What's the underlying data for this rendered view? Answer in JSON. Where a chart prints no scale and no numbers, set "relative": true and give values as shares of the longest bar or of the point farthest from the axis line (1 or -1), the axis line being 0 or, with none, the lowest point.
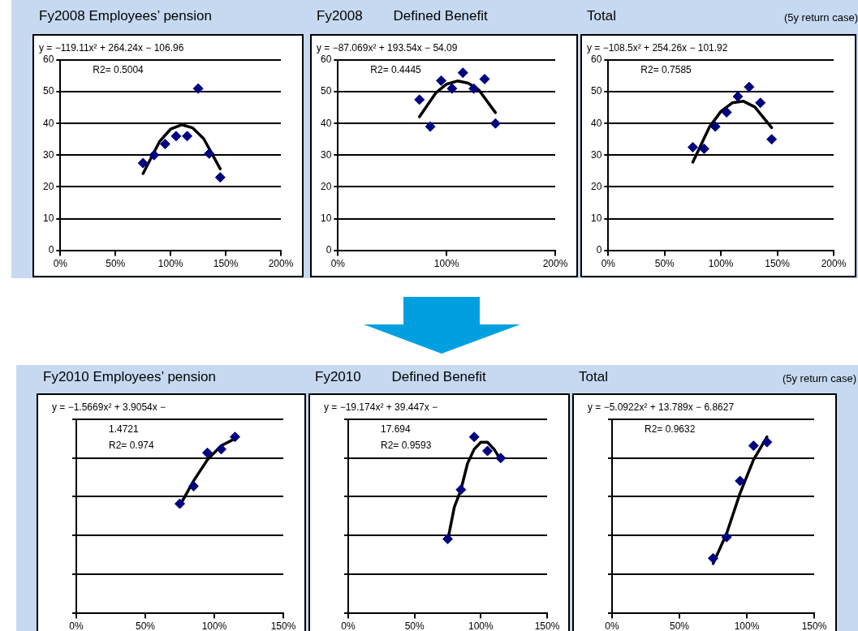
{
  "chart_data": [
    {
      "type": "scatter",
      "title": "Fy2008 Employees’ pension",
      "annotations": [
        "y = −119.11x² + 264.24x − 106.96",
        "R2= 0.5004"
      ],
      "xlim": [
        0,
        2
      ],
      "xticks": [
        {
          "value": 0,
          "label": "0%"
        },
        {
          "value": 0.5,
          "label": "50%"
        },
        {
          "value": 1,
          "label": "100%"
        },
        {
          "value": 1.5,
          "label": "150%"
        },
        {
          "value": 2,
          "label": "200%"
        }
      ],
      "ylim": [
        0,
        60
      ],
      "yticks": [
        0,
        10,
        20,
        30,
        40,
        50,
        60
      ],
      "grid": "y",
      "legend": false,
      "series": [
        {
          "type": "scatter",
          "color": "#000080",
          "marker": "diamond",
          "x": [
            0.75,
            0.85,
            0.95,
            1.05,
            1.15,
            1.25,
            1.35,
            1.45
          ],
          "values": [
            27.5,
            30,
            33.5,
            36,
            36,
            51,
            30.5,
            23
          ]
        },
        {
          "type": "line",
          "color": "#000000",
          "marker": "none",
          "x": [
            0.75,
            0.9,
            1.0,
            1.1,
            1.2,
            1.3,
            1.45
          ],
          "values": [
            24.2,
            34.3,
            38.2,
            39.6,
            38.6,
            35.2,
            25.7
          ]
        }
      ]
    },
    {
      "type": "scatter",
      "title": "Fy2008        Defined Benefit",
      "annotations": [
        "y = −87.069x² + 193.54x − 54.09",
        "R2= 0.4445"
      ],
      "xlim": [
        0,
        2
      ],
      "xticks": [
        {
          "value": 0,
          "label": "0%"
        },
        {
          "value": 1,
          "label": "100%"
        },
        {
          "value": 2,
          "label": "200%"
        }
      ],
      "ylim": [
        0,
        60
      ],
      "yticks": [
        0,
        10,
        20,
        30,
        40,
        50,
        60
      ],
      "grid": "y",
      "legend": false,
      "series": [
        {
          "type": "scatter",
          "color": "#000080",
          "marker": "diamond",
          "x": [
            0.75,
            0.85,
            0.95,
            1.05,
            1.15,
            1.25,
            1.35,
            1.45
          ],
          "values": [
            47.5,
            39,
            53.5,
            51,
            56,
            51,
            54,
            40
          ]
        },
        {
          "type": "line",
          "color": "#000000",
          "marker": "none",
          "x": [
            0.75,
            0.9,
            1.0,
            1.1,
            1.2,
            1.3,
            1.45
          ],
          "values": [
            42.1,
            49.6,
            52.4,
            53.4,
            52.7,
            50.4,
            43.4
          ]
        }
      ]
    },
    {
      "type": "scatter",
      "title": "Total",
      "subtitle": "(5y return case)",
      "annotations": [
        "y = −108.5x² + 254.26x − 101.92",
        "R2= 0.7585"
      ],
      "xlim": [
        0,
        2
      ],
      "xticks": [
        {
          "value": 0,
          "label": "0%"
        },
        {
          "value": 0.5,
          "label": "50%"
        },
        {
          "value": 1,
          "label": "100%"
        },
        {
          "value": 1.5,
          "label": "150%"
        },
        {
          "value": 2,
          "label": "200%"
        }
      ],
      "ylim": [
        0,
        60
      ],
      "yticks": [
        0,
        10,
        20,
        30,
        40,
        50,
        60
      ],
      "grid": "y",
      "legend": false,
      "series": [
        {
          "type": "scatter",
          "color": "#000080",
          "marker": "diamond",
          "x": [
            0.75,
            0.85,
            0.95,
            1.05,
            1.15,
            1.25,
            1.35,
            1.45
          ],
          "values": [
            32.5,
            32,
            39,
            43.5,
            48.5,
            51.5,
            46.5,
            35
          ]
        },
        {
          "type": "line",
          "color": "#000000",
          "marker": "none",
          "x": [
            0.75,
            0.9,
            1.0,
            1.1,
            1.2,
            1.3,
            1.45
          ],
          "values": [
            27.8,
            39.0,
            43.8,
            46.5,
            47.0,
            45.2,
            38.7
          ]
        }
      ]
    },
    {
      "type": "scatter",
      "title": "Fy2010 Employees’ pension",
      "annotations": [
        "y = −1.5669x² + 3.9054x −",
        "1.4721",
        "R2= 0.974"
      ],
      "relative": true,
      "tick_labels": "x",
      "xlim": [
        0,
        1.5
      ],
      "xticks": [
        {
          "value": 0,
          "label": "0%"
        },
        {
          "value": 0.5,
          "label": "50%"
        },
        {
          "value": 1,
          "label": "100%"
        },
        {
          "value": 1.5,
          "label": "150%"
        }
      ],
      "grid": "y",
      "legend": false,
      "series": [
        {
          "type": "scatter",
          "color": "#000080",
          "marker": "diamond",
          "x": [
            0.75,
            0.85,
            0.95,
            1.05,
            1.15
          ],
          "values": [
            0.62,
            0.72,
            0.91,
            0.93,
            1.0
          ]
        },
        {
          "type": "line",
          "color": "#000000",
          "marker": "none",
          "x": [
            0.75,
            0.85,
            0.95,
            1.05,
            1.15
          ],
          "values": [
            0.61,
            0.75,
            0.87,
            0.95,
            0.99
          ]
        }
      ]
    },
    {
      "type": "scatter",
      "title": "Fy2010        Defined Benefit",
      "annotations": [
        "y = −19.174x² + 39.447x −",
        "17.694",
        "R2= 0.9593"
      ],
      "relative": true,
      "tick_labels": "x",
      "xlim": [
        0,
        1.5
      ],
      "xticks": [
        {
          "value": 0,
          "label": "0%"
        },
        {
          "value": 0.5,
          "label": "50%"
        },
        {
          "value": 1,
          "label": "100%"
        },
        {
          "value": 1.5,
          "label": "150%"
        }
      ],
      "grid": "y",
      "legend": false,
      "series": [
        {
          "type": "scatter",
          "color": "#000080",
          "marker": "diamond",
          "x": [
            0.75,
            0.85,
            0.95,
            1.05,
            1.15
          ],
          "values": [
            0.42,
            0.7,
            1.0,
            0.92,
            0.88
          ]
        },
        {
          "type": "line",
          "color": "#000000",
          "marker": "none",
          "x": [
            0.75,
            0.8,
            0.85,
            0.9,
            0.95,
            1.0,
            1.05,
            1.1,
            1.15
          ],
          "values": [
            0.41,
            0.6,
            0.7,
            0.85,
            0.93,
            0.97,
            0.97,
            0.93,
            0.87
          ]
        }
      ]
    },
    {
      "type": "scatter",
      "title": "Total",
      "subtitle": "(5y return case)",
      "annotations": [
        "y = −5.0922x² + 13.789x − 6.8627",
        "R2= 0.9632"
      ],
      "relative": true,
      "tick_labels": "x",
      "xlim": [
        0,
        1.5
      ],
      "xticks": [
        {
          "value": 0,
          "label": "0%"
        },
        {
          "value": 0.5,
          "label": "50%"
        },
        {
          "value": 1,
          "label": "100%"
        },
        {
          "value": 1.5,
          "label": "150%"
        }
      ],
      "grid": "y",
      "legend": false,
      "series": [
        {
          "type": "scatter",
          "color": "#000080",
          "marker": "diamond",
          "x": [
            0.75,
            0.85,
            0.95,
            1.05,
            1.15
          ],
          "values": [
            0.31,
            0.43,
            0.75,
            0.95,
            0.97
          ]
        },
        {
          "type": "line",
          "color": "#000000",
          "marker": "none",
          "x": [
            0.75,
            0.85,
            0.95,
            1.05,
            1.15
          ],
          "values": [
            0.28,
            0.45,
            0.68,
            0.87,
            1.0
          ]
        }
      ]
    }
  ]
}
